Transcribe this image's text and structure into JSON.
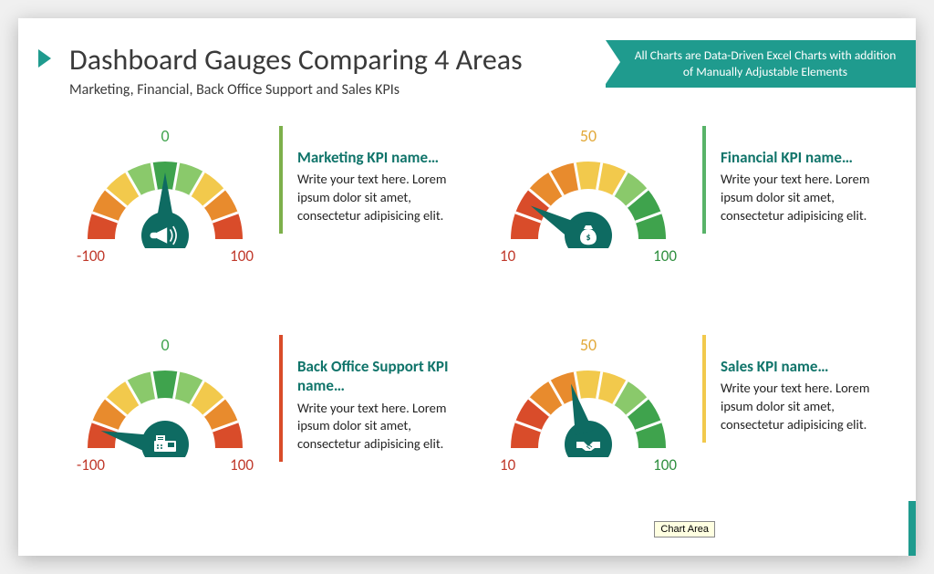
{
  "title": "Dashboard Gauges Comparing 4 Areas",
  "subtitle": "Marketing, Financial, Back Office Support and Sales KPIs",
  "ribbon": "All Charts are Data-Driven Excel Charts with addition of Manually Adjustable Elements",
  "tooltip": "Chart Area",
  "accent_color": "#1f9b8e",
  "gauge_colors": {
    "red": "#d94c2a",
    "orange": "#e88b2d",
    "yellow": "#f2c94c",
    "light_green": "#8ac96b",
    "green": "#3fa34d",
    "hub": "#0e6b62",
    "tick": "#ffffff"
  },
  "kpis": [
    {
      "name": "Marketing KPI name…",
      "body": "Write your text here. Lorem ipsum dolor sit amet, consectetur adipisicing elit.",
      "border_color": "#7db04b",
      "icon": "megaphone",
      "top_label": "0",
      "top_label_color": "#3fa34d",
      "left_label": "-100",
      "left_label_color": "#c0392b",
      "right_label": "100",
      "right_label_color": "#c0392b",
      "needle_angle": 90,
      "segments": [
        "red",
        "orange",
        "yellow",
        "light_green",
        "green",
        "light_green",
        "yellow",
        "orange",
        "red"
      ]
    },
    {
      "name": "Financial KPI name…",
      "body": "Write your text here. Lorem ipsum dolor sit amet, consectetur adipisicing elit.",
      "border_color": "#58b368",
      "icon": "moneybag",
      "top_label": "50",
      "top_label_color": "#e2a93a",
      "left_label": "10",
      "left_label_color": "#c0392b",
      "right_label": "100",
      "right_label_color": "#2f8f3f",
      "needle_angle": 30,
      "segments": [
        "red",
        "red",
        "orange",
        "orange",
        "yellow",
        "yellow",
        "light_green",
        "green",
        "green"
      ]
    },
    {
      "name": "Back Office Support KPI name…",
      "body": "Write your text here. Lorem ipsum dolor sit amet, consectetur adipisicing elit.",
      "border_color": "#d94c2a",
      "icon": "fax",
      "top_label": "0",
      "top_label_color": "#3fa34d",
      "left_label": "-100",
      "left_label_color": "#c0392b",
      "right_label": "100",
      "right_label_color": "#c0392b",
      "needle_angle": 15,
      "segments": [
        "red",
        "orange",
        "yellow",
        "light_green",
        "green",
        "light_green",
        "yellow",
        "orange",
        "red"
      ]
    },
    {
      "name": "Sales KPI name…",
      "body": "Write your text here. Lorem ipsum dolor sit amet, consectetur adipisicing elit.",
      "border_color": "#f2c94c",
      "icon": "handshake",
      "top_label": "50",
      "top_label_color": "#e2a93a",
      "left_label": "10",
      "left_label_color": "#c0392b",
      "right_label": "100",
      "right_label_color": "#2f8f3f",
      "needle_angle": 75,
      "segments": [
        "red",
        "red",
        "orange",
        "orange",
        "yellow",
        "yellow",
        "light_green",
        "green",
        "green"
      ]
    }
  ]
}
